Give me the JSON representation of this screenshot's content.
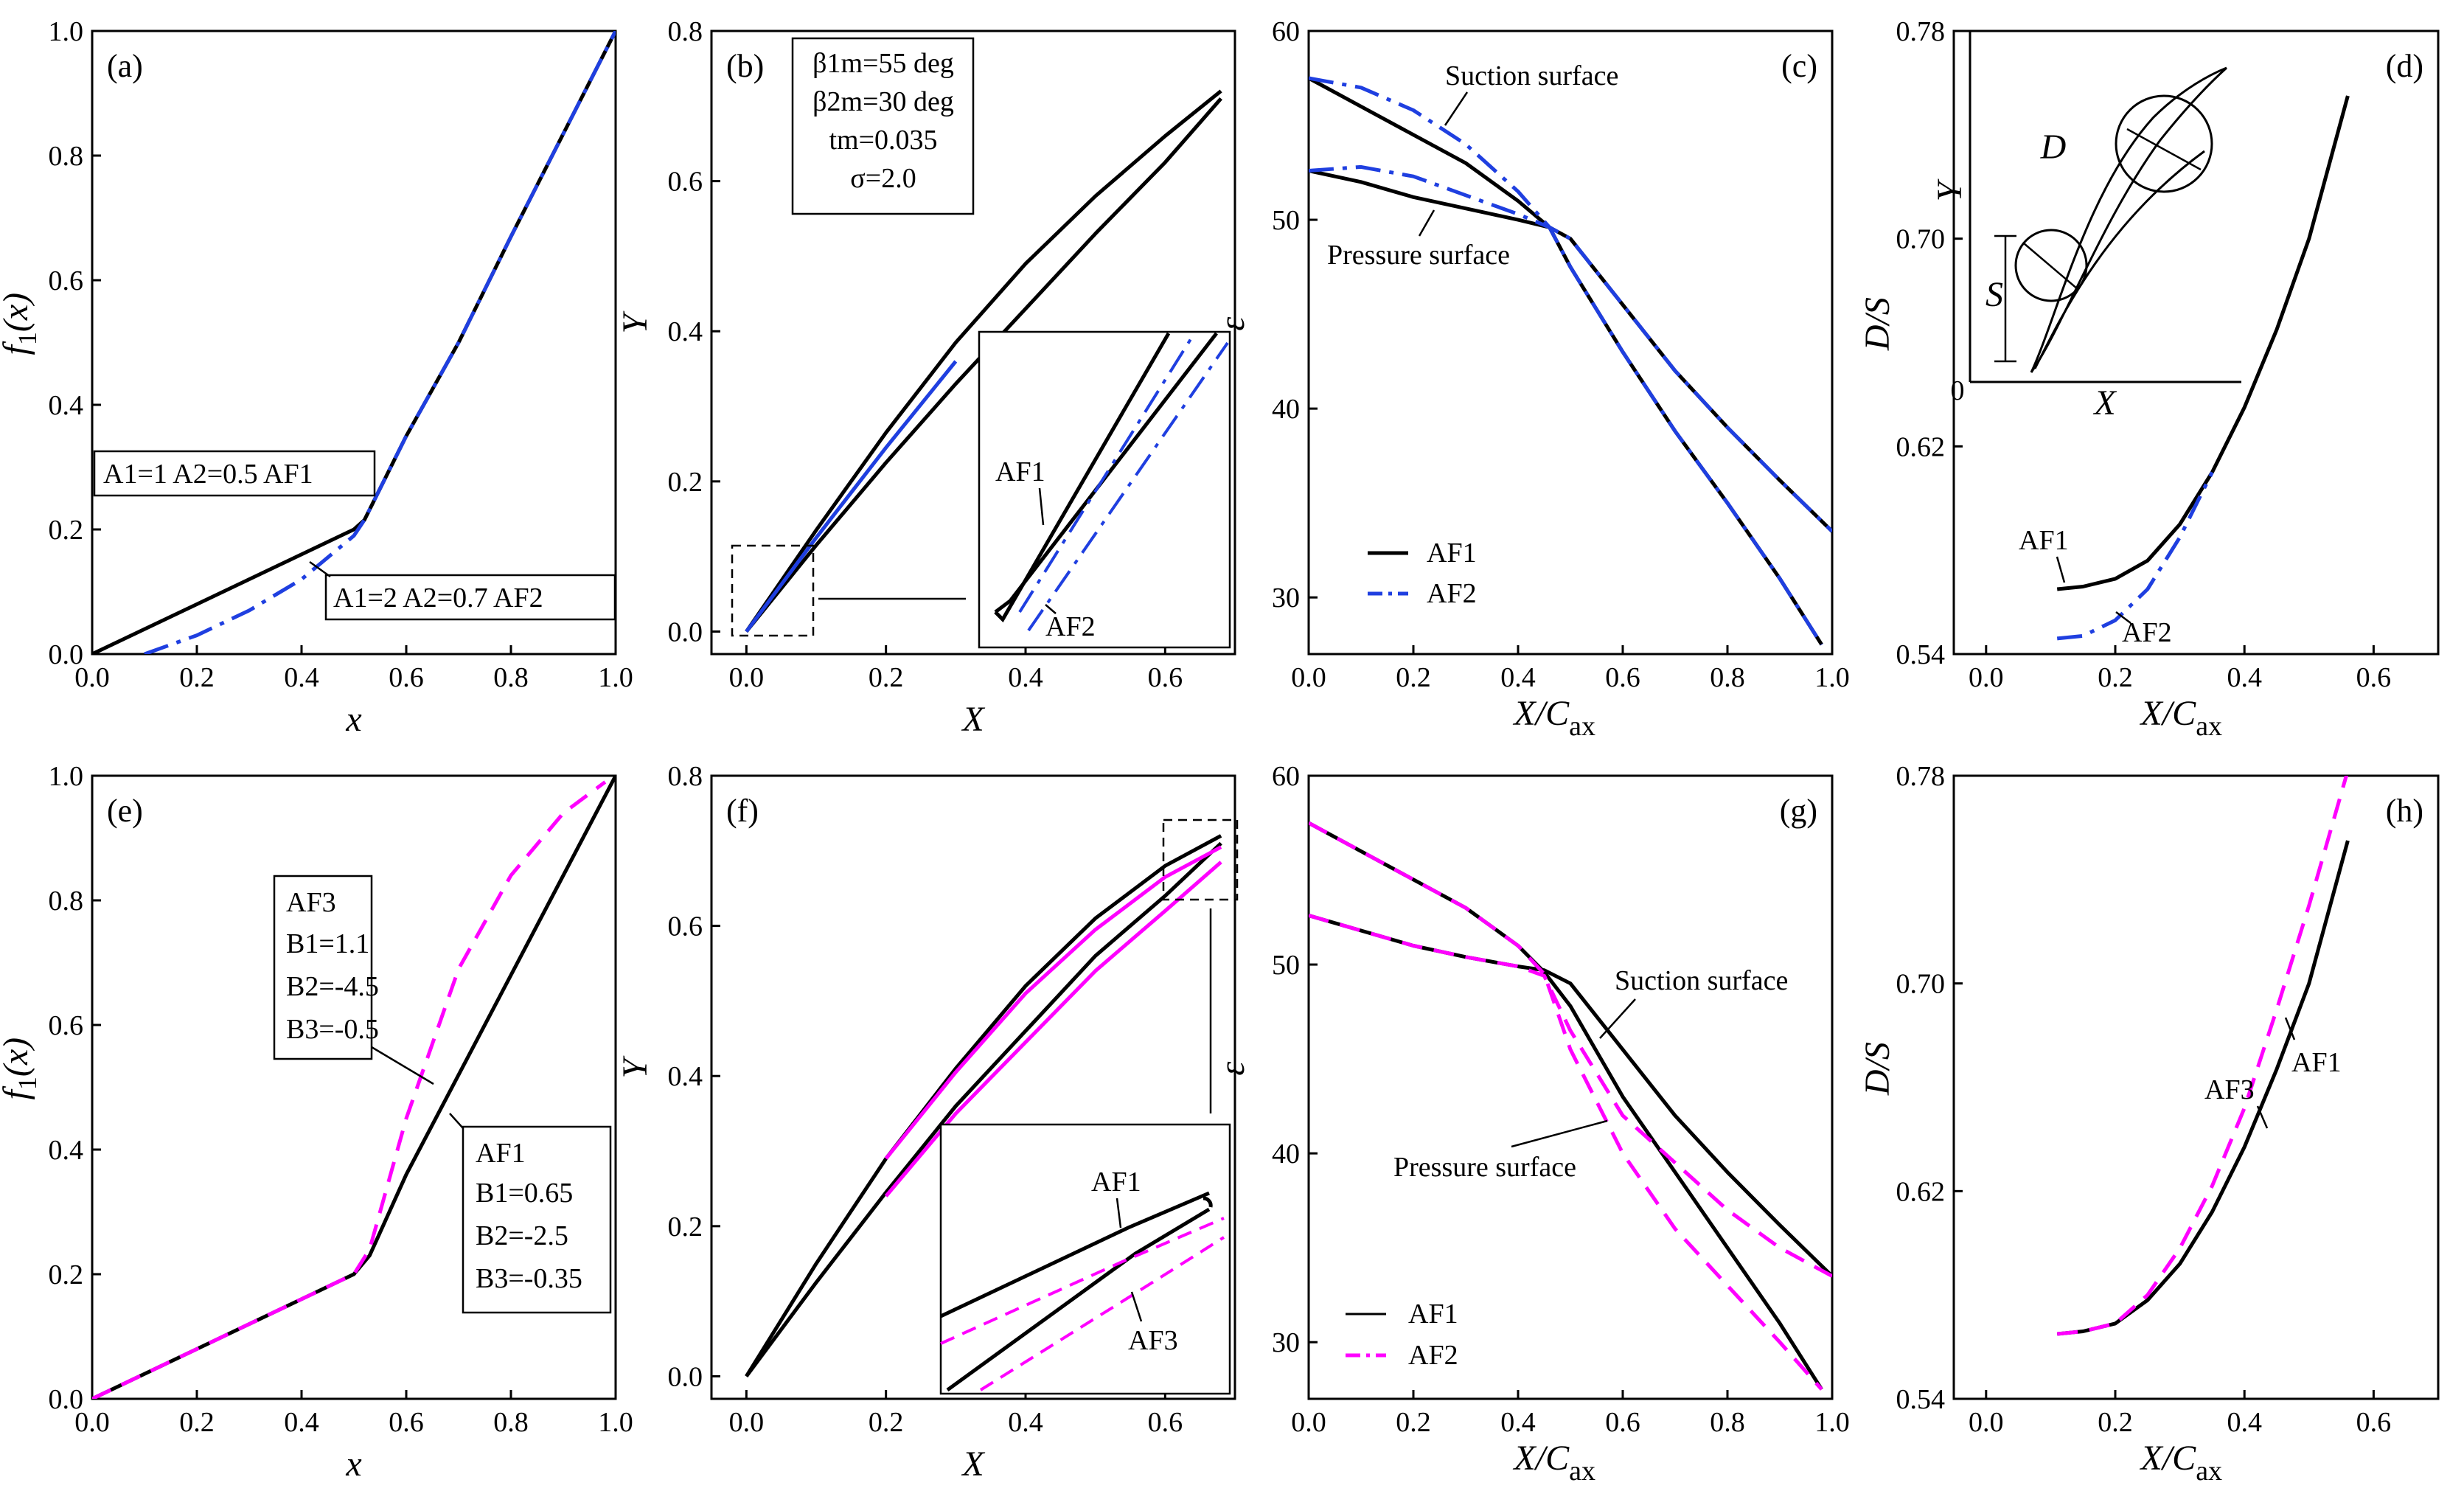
{
  "colors": {
    "black": "#000000",
    "blue": "#1f3fe0",
    "magenta": "#ff00ff"
  },
  "chart_data": [
    {
      "id": "a",
      "type": "line",
      "panel_label": "(a)",
      "xlabel": "x",
      "ylabel": "f1(x)",
      "xlim": [
        0,
        1
      ],
      "ylim": [
        0,
        1
      ],
      "xticks": [
        "0.0",
        "0.2",
        "0.4",
        "0.6",
        "0.8",
        "1.0"
      ],
      "yticks": [
        "0.0",
        "0.2",
        "0.4",
        "0.6",
        "0.8",
        "1.0"
      ],
      "annotations": [
        "A1=1 A2=0.5  AF1",
        "A1=2 A2=0.7   AF2"
      ],
      "series": [
        {
          "name": "AF1",
          "color": "#000000",
          "style": "solid",
          "x": [
            0,
            0.5,
            0.52,
            0.6,
            0.7,
            0.8,
            0.9,
            1.0
          ],
          "y": [
            0,
            0.2,
            0.215,
            0.35,
            0.5,
            0.67,
            0.835,
            1.0
          ]
        },
        {
          "name": "AF2",
          "color": "#1f3fe0",
          "style": "dashdot",
          "x": [
            0.1,
            0.2,
            0.3,
            0.4,
            0.5,
            0.52,
            0.6,
            0.7,
            0.8,
            0.9,
            1.0
          ],
          "y": [
            0,
            0.03,
            0.07,
            0.12,
            0.19,
            0.215,
            0.35,
            0.5,
            0.67,
            0.835,
            1.0
          ]
        }
      ]
    },
    {
      "id": "b",
      "type": "line",
      "panel_label": "(b)",
      "xlabel": "X",
      "ylabel": "Y",
      "xlim": [
        -0.05,
        0.7
      ],
      "ylim": [
        -0.03,
        0.8
      ],
      "xticks": [
        "0.0",
        "0.2",
        "0.4",
        "0.6"
      ],
      "yticks": [
        "0.0",
        "0.2",
        "0.4",
        "0.6",
        "0.8"
      ],
      "legend_box": [
        "β1m=55 deg",
        "β2m=30 deg",
        "tm=0.035",
        "σ=2.0"
      ],
      "inset_labels": [
        "AF1",
        "AF2"
      ],
      "series": [
        {
          "name": "AF1 suction",
          "color": "#000000",
          "x": [
            0,
            0.1,
            0.2,
            0.3,
            0.4,
            0.5,
            0.6,
            0.68
          ],
          "y": [
            0,
            0.135,
            0.265,
            0.385,
            0.49,
            0.58,
            0.66,
            0.72
          ]
        },
        {
          "name": "AF1 pressure",
          "color": "#000000",
          "x": [
            0,
            0.1,
            0.2,
            0.3,
            0.4,
            0.5,
            0.6,
            0.68
          ],
          "y": [
            0,
            0.115,
            0.225,
            0.33,
            0.43,
            0.53,
            0.625,
            0.71
          ]
        },
        {
          "name": "AF2",
          "color": "#1f3fe0",
          "x": [
            0,
            0.1,
            0.2,
            0.3
          ],
          "y": [
            0,
            0.125,
            0.245,
            0.36
          ]
        }
      ]
    },
    {
      "id": "c",
      "type": "line",
      "panel_label": "(c)",
      "xlabel": "X/Cax",
      "ylabel": "ε",
      "xlim": [
        0,
        1
      ],
      "ylim": [
        27,
        60
      ],
      "xticks": [
        "0.0",
        "0.2",
        "0.4",
        "0.6",
        "0.8",
        "1.0"
      ],
      "yticks": [
        "30",
        "40",
        "50",
        "60"
      ],
      "annotations": [
        "Suction surface",
        "Pressure surface"
      ],
      "legend": [
        "AF1",
        "AF2"
      ],
      "series": [
        {
          "name": "AF1 suction",
          "color": "#000000",
          "style": "solid",
          "x": [
            0,
            0.1,
            0.2,
            0.3,
            0.4,
            0.46,
            0.5,
            0.6,
            0.7,
            0.8,
            0.9,
            0.98
          ],
          "y": [
            57.5,
            56.0,
            54.5,
            53.0,
            51.0,
            49.6,
            47.5,
            43.0,
            38.8,
            35.0,
            31.0,
            27.5
          ]
        },
        {
          "name": "AF1 pressure",
          "color": "#000000",
          "style": "solid",
          "x": [
            0,
            0.1,
            0.2,
            0.3,
            0.4,
            0.46,
            0.5,
            0.6,
            0.7,
            0.8,
            0.9,
            1.0
          ],
          "y": [
            52.6,
            52.0,
            51.2,
            50.6,
            50.0,
            49.6,
            49.0,
            45.5,
            42.0,
            39.0,
            36.2,
            33.5
          ]
        },
        {
          "name": "AF2 suction",
          "color": "#1f3fe0",
          "style": "dashdot",
          "x": [
            0,
            0.1,
            0.2,
            0.3,
            0.4,
            0.46,
            0.5,
            0.6,
            0.7,
            0.8,
            0.9,
            0.98
          ],
          "y": [
            57.5,
            57.0,
            55.8,
            54.0,
            51.5,
            49.6,
            47.5,
            43.0,
            38.8,
            35.0,
            31.0,
            27.5
          ]
        },
        {
          "name": "AF2 pressure",
          "color": "#1f3fe0",
          "style": "dashdot",
          "x": [
            0,
            0.1,
            0.2,
            0.3,
            0.4,
            0.46,
            0.5,
            0.6,
            0.7,
            0.8,
            0.9,
            1.0
          ],
          "y": [
            52.6,
            52.8,
            52.3,
            51.3,
            50.3,
            49.6,
            49.0,
            45.5,
            42.0,
            39.0,
            36.2,
            33.5
          ]
        }
      ]
    },
    {
      "id": "d",
      "type": "line",
      "panel_label": "(d)",
      "xlabel": "X/Cax",
      "ylabel": "D/S",
      "xlim": [
        -0.05,
        0.7
      ],
      "ylim": [
        0.54,
        0.78
      ],
      "xticks": [
        "0.0",
        "0.2",
        "0.4",
        "0.6"
      ],
      "yticks": [
        "0.54",
        "0.62",
        "0.70",
        "0.78"
      ],
      "annotations": [
        "AF1",
        "AF2"
      ],
      "inset_labels": [
        "D",
        "S",
        "Y",
        "X",
        "0"
      ],
      "series": [
        {
          "name": "AF1",
          "color": "#000000",
          "style": "solid",
          "x": [
            0.11,
            0.15,
            0.2,
            0.25,
            0.3,
            0.35,
            0.4,
            0.45,
            0.5,
            0.56
          ],
          "y": [
            0.565,
            0.566,
            0.569,
            0.576,
            0.59,
            0.61,
            0.635,
            0.665,
            0.7,
            0.755
          ]
        },
        {
          "name": "AF2",
          "color": "#1f3fe0",
          "style": "dashdot",
          "x": [
            0.11,
            0.15,
            0.2,
            0.25,
            0.3,
            0.35
          ],
          "y": [
            0.546,
            0.547,
            0.553,
            0.565,
            0.585,
            0.61
          ]
        }
      ]
    },
    {
      "id": "e",
      "type": "line",
      "panel_label": "(e)",
      "xlabel": "x",
      "ylabel": "f1(x)",
      "xlim": [
        0,
        1
      ],
      "ylim": [
        0,
        1
      ],
      "xticks": [
        "0.0",
        "0.2",
        "0.4",
        "0.6",
        "0.8",
        "1.0"
      ],
      "yticks": [
        "0.0",
        "0.2",
        "0.4",
        "0.6",
        "0.8",
        "1.0"
      ],
      "annotations": [
        "AF3",
        "B1=1.1",
        "B2=-4.5",
        "B3=-0.5",
        "AF1",
        "B1=0.65",
        "B2=-2.5",
        "B3=-0.35"
      ],
      "series": [
        {
          "name": "AF1",
          "color": "#000000",
          "style": "solid",
          "x": [
            0,
            0.5,
            0.53,
            0.6,
            0.7,
            0.8,
            0.9,
            1.0
          ],
          "y": [
            0,
            0.2,
            0.23,
            0.36,
            0.52,
            0.68,
            0.84,
            1.0
          ]
        },
        {
          "name": "AF3",
          "color": "#ff00ff",
          "style": "dashed",
          "x": [
            0,
            0.5,
            0.53,
            0.6,
            0.7,
            0.8,
            0.9,
            0.98
          ],
          "y": [
            0,
            0.2,
            0.24,
            0.45,
            0.69,
            0.84,
            0.94,
            0.99
          ]
        }
      ]
    },
    {
      "id": "f",
      "type": "line",
      "panel_label": "(f)",
      "xlabel": "X",
      "ylabel": "Y",
      "xlim": [
        -0.05,
        0.7
      ],
      "ylim": [
        -0.03,
        0.8
      ],
      "xticks": [
        "0.0",
        "0.2",
        "0.4",
        "0.6"
      ],
      "yticks": [
        "0.0",
        "0.2",
        "0.4",
        "0.6",
        "0.8"
      ],
      "inset_labels": [
        "AF1",
        "AF3"
      ],
      "series": [
        {
          "name": "AF1 suction",
          "color": "#000000",
          "x": [
            0,
            0.1,
            0.2,
            0.3,
            0.4,
            0.5,
            0.6,
            0.68
          ],
          "y": [
            0,
            0.15,
            0.29,
            0.41,
            0.52,
            0.61,
            0.68,
            0.72
          ]
        },
        {
          "name": "AF1 pressure",
          "color": "#000000",
          "x": [
            0,
            0.1,
            0.2,
            0.3,
            0.4,
            0.5,
            0.6,
            0.68
          ],
          "y": [
            0,
            0.125,
            0.245,
            0.36,
            0.46,
            0.56,
            0.64,
            0.71
          ]
        },
        {
          "name": "AF3 suction",
          "color": "#ff00ff",
          "x": [
            0.2,
            0.3,
            0.4,
            0.5,
            0.6,
            0.68
          ],
          "y": [
            0.29,
            0.405,
            0.51,
            0.595,
            0.665,
            0.705
          ]
        },
        {
          "name": "AF3 pressure",
          "color": "#ff00ff",
          "x": [
            0.2,
            0.3,
            0.4,
            0.5,
            0.6,
            0.68
          ],
          "y": [
            0.24,
            0.35,
            0.445,
            0.54,
            0.62,
            0.685
          ]
        }
      ]
    },
    {
      "id": "g",
      "type": "line",
      "panel_label": "(g)",
      "xlabel": "X/Cax",
      "ylabel": "ε",
      "xlim": [
        0,
        1
      ],
      "ylim": [
        27,
        60
      ],
      "xticks": [
        "0.0",
        "0.2",
        "0.4",
        "0.6",
        "0.8",
        "1.0"
      ],
      "yticks": [
        "30",
        "40",
        "50",
        "60"
      ],
      "annotations": [
        "Suction surface",
        "Pressure surface"
      ],
      "legend": [
        "AF1",
        "AF2"
      ],
      "series": [
        {
          "name": "AF1 suction",
          "color": "#000000",
          "style": "solid",
          "x": [
            0,
            0.1,
            0.2,
            0.3,
            0.4,
            0.45,
            0.5,
            0.6,
            0.7,
            0.8,
            0.9,
            0.98
          ],
          "y": [
            57.5,
            56.0,
            54.5,
            53.0,
            51.0,
            49.6,
            47.8,
            43.0,
            39.0,
            35.0,
            31.0,
            27.5
          ]
        },
        {
          "name": "AF1 pressure",
          "color": "#000000",
          "style": "solid",
          "x": [
            0,
            0.1,
            0.2,
            0.3,
            0.4,
            0.45,
            0.5,
            0.6,
            0.7,
            0.8,
            0.9,
            1.0
          ],
          "y": [
            52.6,
            51.8,
            51.0,
            50.4,
            49.9,
            49.7,
            49.0,
            45.5,
            42.0,
            39.0,
            36.2,
            33.5
          ]
        },
        {
          "name": "AF2 suction",
          "color": "#ff00ff",
          "style": "dashed",
          "x": [
            0,
            0.1,
            0.2,
            0.3,
            0.4,
            0.45,
            0.5,
            0.6,
            0.7,
            0.8,
            0.9,
            0.98
          ],
          "y": [
            57.5,
            56.0,
            54.5,
            53.0,
            51.0,
            49.5,
            45.5,
            40.0,
            36.0,
            33.0,
            30.0,
            27.5
          ]
        },
        {
          "name": "AF2 pressure",
          "color": "#ff00ff",
          "style": "dashed",
          "x": [
            0,
            0.1,
            0.2,
            0.3,
            0.4,
            0.45,
            0.5,
            0.6,
            0.7,
            0.8,
            0.9,
            1.0
          ],
          "y": [
            52.6,
            51.8,
            51.0,
            50.4,
            49.9,
            49.4,
            46.5,
            42.0,
            39.5,
            37.0,
            35.0,
            33.5
          ]
        }
      ]
    },
    {
      "id": "h",
      "type": "line",
      "panel_label": "(h)",
      "xlabel": "X/Cax",
      "ylabel": "D/S",
      "xlim": [
        -0.05,
        0.7
      ],
      "ylim": [
        0.54,
        0.78
      ],
      "xticks": [
        "0.0",
        "0.2",
        "0.4",
        "0.6"
      ],
      "yticks": [
        "0.54",
        "0.62",
        "0.70",
        "0.78"
      ],
      "annotations": [
        "AF3",
        "AF1"
      ],
      "series": [
        {
          "name": "AF1",
          "color": "#000000",
          "style": "solid",
          "x": [
            0.11,
            0.15,
            0.2,
            0.25,
            0.3,
            0.35,
            0.4,
            0.45,
            0.5,
            0.56
          ],
          "y": [
            0.565,
            0.566,
            0.569,
            0.578,
            0.592,
            0.612,
            0.637,
            0.667,
            0.7,
            0.755
          ]
        },
        {
          "name": "AF3",
          "color": "#ff00ff",
          "style": "dashed",
          "x": [
            0.11,
            0.15,
            0.2,
            0.25,
            0.3,
            0.35,
            0.4,
            0.45,
            0.5,
            0.56
          ],
          "y": [
            0.565,
            0.566,
            0.569,
            0.58,
            0.598,
            0.622,
            0.652,
            0.69,
            0.73,
            0.782
          ]
        }
      ]
    }
  ]
}
